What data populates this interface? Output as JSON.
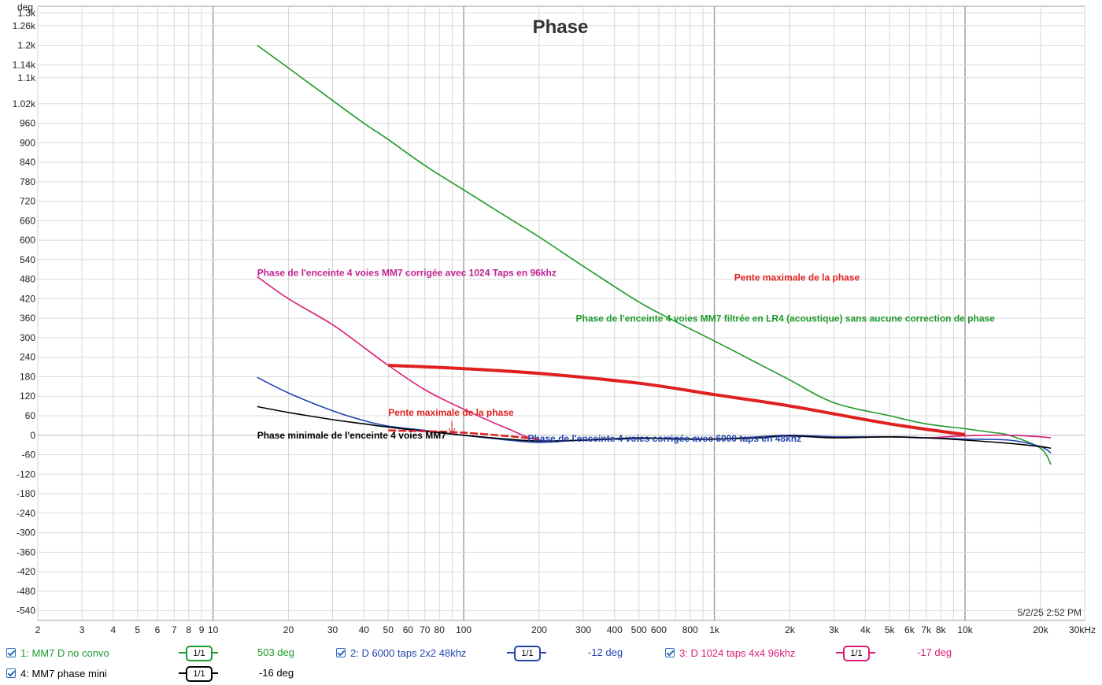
{
  "chart_data": {
    "type": "line",
    "title": "Phase",
    "ylabel": "deg",
    "xlabel": "",
    "x_scale": "log",
    "xlim": [
      2,
      30000
    ],
    "ylim": [
      -570,
      1320
    ],
    "grid": true,
    "yticks": [
      1300,
      1260,
      1200,
      1140,
      1100,
      1020,
      960,
      900,
      840,
      780,
      720,
      660,
      600,
      540,
      480,
      420,
      360,
      300,
      240,
      180,
      120,
      60,
      0,
      -60,
      -120,
      -180,
      -240,
      -300,
      -360,
      -420,
      -480,
      -540
    ],
    "ytick_labels": [
      "1.3k",
      "1.26k",
      "1.2k",
      "1.14k",
      "1.1k",
      "1.02k",
      "960",
      "900",
      "840",
      "780",
      "720",
      "660",
      "600",
      "540",
      "480",
      "420",
      "360",
      "300",
      "240",
      "180",
      "120",
      "60",
      "0",
      "-60",
      "-120",
      "-180",
      "-240",
      "-300",
      "-360",
      "-420",
      "-480",
      "-540"
    ],
    "xticks": [
      2,
      3,
      4,
      5,
      6,
      7,
      8,
      9,
      10,
      20,
      30,
      40,
      50,
      60,
      70,
      80,
      100,
      200,
      300,
      400,
      500,
      600,
      800,
      1000,
      2000,
      3000,
      4000,
      5000,
      6000,
      7000,
      8000,
      10000,
      20000,
      30000
    ],
    "xtick_labels": [
      "2",
      "3",
      "4",
      "5",
      "6",
      "7",
      "8",
      "9",
      "10",
      "20",
      "30",
      "40",
      "50",
      "60",
      "70",
      "80",
      "100",
      "200",
      "300",
      "400",
      "500",
      "600",
      "800",
      "1k",
      "2k",
      "3k",
      "4k",
      "5k",
      "6k",
      "7k",
      "8k",
      "10k",
      "20k",
      "30kHz"
    ],
    "series": [
      {
        "name": "1: MM7 D no convo",
        "color": "#1e9a2a",
        "x": [
          15,
          20,
          30,
          40,
          50,
          70,
          100,
          150,
          200,
          300,
          500,
          700,
          1000,
          1500,
          2000,
          3000,
          5000,
          7000,
          10000,
          13000,
          15000,
          20000,
          22000
        ],
        "y": [
          1200,
          1130,
          1030,
          960,
          910,
          830,
          755,
          670,
          610,
          520,
          410,
          350,
          290,
          220,
          170,
          100,
          60,
          35,
          20,
          8,
          0,
          -40,
          -90
        ]
      },
      {
        "name": "2: D 6000 taps 2x2 48khz",
        "color": "#2144b0",
        "x": [
          15,
          20,
          30,
          40,
          50,
          70,
          100,
          150,
          200,
          300,
          500,
          700,
          1000,
          1500,
          2000,
          3000,
          5000,
          7000,
          10000,
          15000,
          20000,
          22000
        ],
        "y": [
          178,
          130,
          75,
          45,
          28,
          15,
          0,
          -15,
          -22,
          -15,
          -10,
          -10,
          -12,
          -5,
          0,
          -5,
          -5,
          -8,
          -12,
          -15,
          -35,
          -55
        ]
      },
      {
        "name": "3: D 1024 taps 4x4 96khz",
        "color": "#d81e78",
        "x": [
          15,
          20,
          30,
          40,
          50,
          70,
          100,
          150,
          200,
          300,
          500,
          700,
          1000,
          1500,
          2000,
          3000,
          5000,
          7000,
          10000,
          15000,
          20000,
          22000
        ],
        "y": [
          488,
          420,
          340,
          270,
          215,
          140,
          80,
          20,
          -15,
          -15,
          -10,
          -10,
          -12,
          -5,
          0,
          -5,
          -5,
          -8,
          -2,
          0,
          -5,
          -8
        ]
      },
      {
        "name": "4: MM7 phase mini",
        "color": "#000000",
        "x": [
          15,
          20,
          30,
          40,
          50,
          70,
          100,
          150,
          200,
          300,
          500,
          700,
          1000,
          1500,
          2000,
          3000,
          5000,
          7000,
          10000,
          15000,
          20000,
          22000
        ],
        "y": [
          88,
          70,
          48,
          35,
          25,
          12,
          0,
          -12,
          -18,
          -15,
          -8,
          -12,
          -12,
          -8,
          -2,
          -8,
          -5,
          -8,
          -15,
          -25,
          -35,
          -40
        ]
      }
    ],
    "slope_lines": [
      {
        "color": "#e02020",
        "x": [
          50,
          100,
          200,
          500,
          1000,
          2000,
          5000,
          10000
        ],
        "y": [
          215,
          205,
          190,
          160,
          125,
          90,
          35,
          2
        ]
      },
      {
        "color": "#e02020",
        "x": [
          50,
          100,
          200
        ],
        "y": [
          15,
          8,
          -12
        ]
      }
    ],
    "annotations": [
      {
        "text": "Phase de l'enceinte 4 voies  MM7 filtrée en LR4 (acoustique) sans aucune correction de phase",
        "color": "#1e9a2a",
        "x": 280,
        "y": 350
      },
      {
        "text": "Phase de l'enceinte 4 voies MM7 corrigée avec 1024 Taps en 96khz",
        "color": "#c02090",
        "x": 15,
        "y": 490
      },
      {
        "text": "Pente maximale de la phase",
        "color": "#e02020",
        "x": 1200,
        "y": 475
      },
      {
        "text": "Pente maximale de la phase",
        "color": "#e02020",
        "x": 50,
        "y": 60
      },
      {
        "text": "Phase minimale de l'enceinte 4 voies MM7",
        "color": "#000000",
        "x": 15,
        "y": -10
      },
      {
        "text": "Phase de l'enceinte 4 voies corrigée avec 6000 taps en 48khz",
        "color": "#2144b0",
        "x": 180,
        "y": -20
      }
    ],
    "timestamp": "5/2/25 2:52 PM"
  },
  "legend": [
    {
      "label": "1: MM7 D no convo",
      "value": "503 deg",
      "color": "#1e9a2a",
      "smoothing": "1/1"
    },
    {
      "label": "2: D 6000 taps 2x2 48khz",
      "value": "-12 deg",
      "color": "#2144b0",
      "smoothing": "1/1"
    },
    {
      "label": "3: D 1024 taps 4x4 96khz",
      "value": "-17 deg",
      "color": "#d81e78",
      "smoothing": "1/1"
    },
    {
      "label": "4: MM7 phase mini",
      "value": "-16 deg",
      "color": "#000000",
      "smoothing": "1/1"
    }
  ]
}
